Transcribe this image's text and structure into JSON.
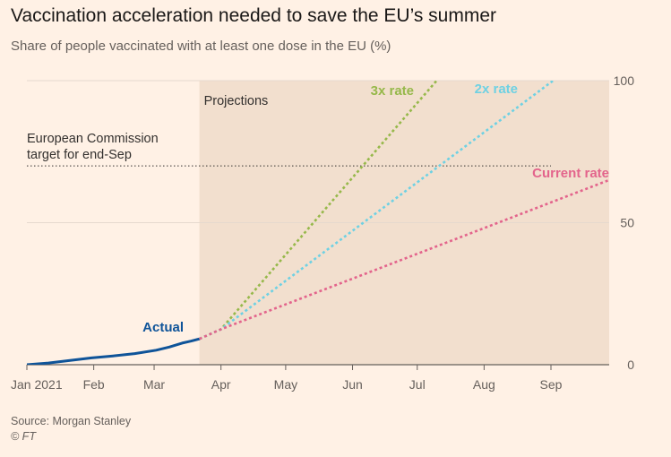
{
  "header": {
    "title": "Vaccination acceleration needed to save the EU’s summer",
    "subtitle": "Share of people vaccinated with at least one dose in the EU (%)"
  },
  "footer": {
    "source": "Source: Morgan Stanley",
    "copyright": "© FT"
  },
  "chart_data": {
    "type": "line",
    "title": "Vaccination acceleration needed to save the EU’s summer",
    "subtitle": "Share of people vaccinated with at least one dose in the EU (%)",
    "x_unit": "days since 1 Jan 2021",
    "xlim": [
      0,
      270
    ],
    "ylim": [
      0,
      100
    ],
    "x_ticks": [
      {
        "label": "Jan 2021",
        "value": 0
      },
      {
        "label": "Feb",
        "value": 31
      },
      {
        "label": "Mar",
        "value": 59
      },
      {
        "label": "Apr",
        "value": 90
      },
      {
        "label": "May",
        "value": 120
      },
      {
        "label": "Jun",
        "value": 151
      },
      {
        "label": "Jul",
        "value": 181
      },
      {
        "label": "Aug",
        "value": 212
      },
      {
        "label": "Sep",
        "value": 243
      }
    ],
    "y_ticks": [
      {
        "label": "0",
        "value": 0
      },
      {
        "label": "50",
        "value": 50
      },
      {
        "label": "100",
        "value": 100
      }
    ],
    "projection_region": {
      "label": "Projections",
      "x_start": 80,
      "x_end": 270
    },
    "target": {
      "label_line1": "European Commission",
      "label_line2": "target for end-Sep",
      "value": 70,
      "x_end": 243
    },
    "series": [
      {
        "name": "Actual",
        "style": "solid",
        "color": "#0f5499",
        "x": [
          0,
          10,
          20,
          30,
          40,
          50,
          60,
          66,
          72,
          76,
          80
        ],
        "y": [
          0,
          0.6,
          1.5,
          2.4,
          3.1,
          3.9,
          5.1,
          6.2,
          7.6,
          8.3,
          9.1
        ]
      },
      {
        "name": "3x rate",
        "style": "dotted",
        "color": "#96b84a",
        "x": [
          80,
          90,
          190
        ],
        "y": [
          9.1,
          12.5,
          100
        ]
      },
      {
        "name": "2x rate",
        "style": "dotted",
        "color": "#6ed1e3",
        "x": [
          80,
          90,
          244
        ],
        "y": [
          9.1,
          12.5,
          100
        ]
      },
      {
        "name": "Current rate",
        "style": "dotted",
        "color": "#e3648c",
        "x": [
          80,
          90,
          270
        ],
        "y": [
          9.1,
          12.5,
          65
        ]
      }
    ]
  }
}
